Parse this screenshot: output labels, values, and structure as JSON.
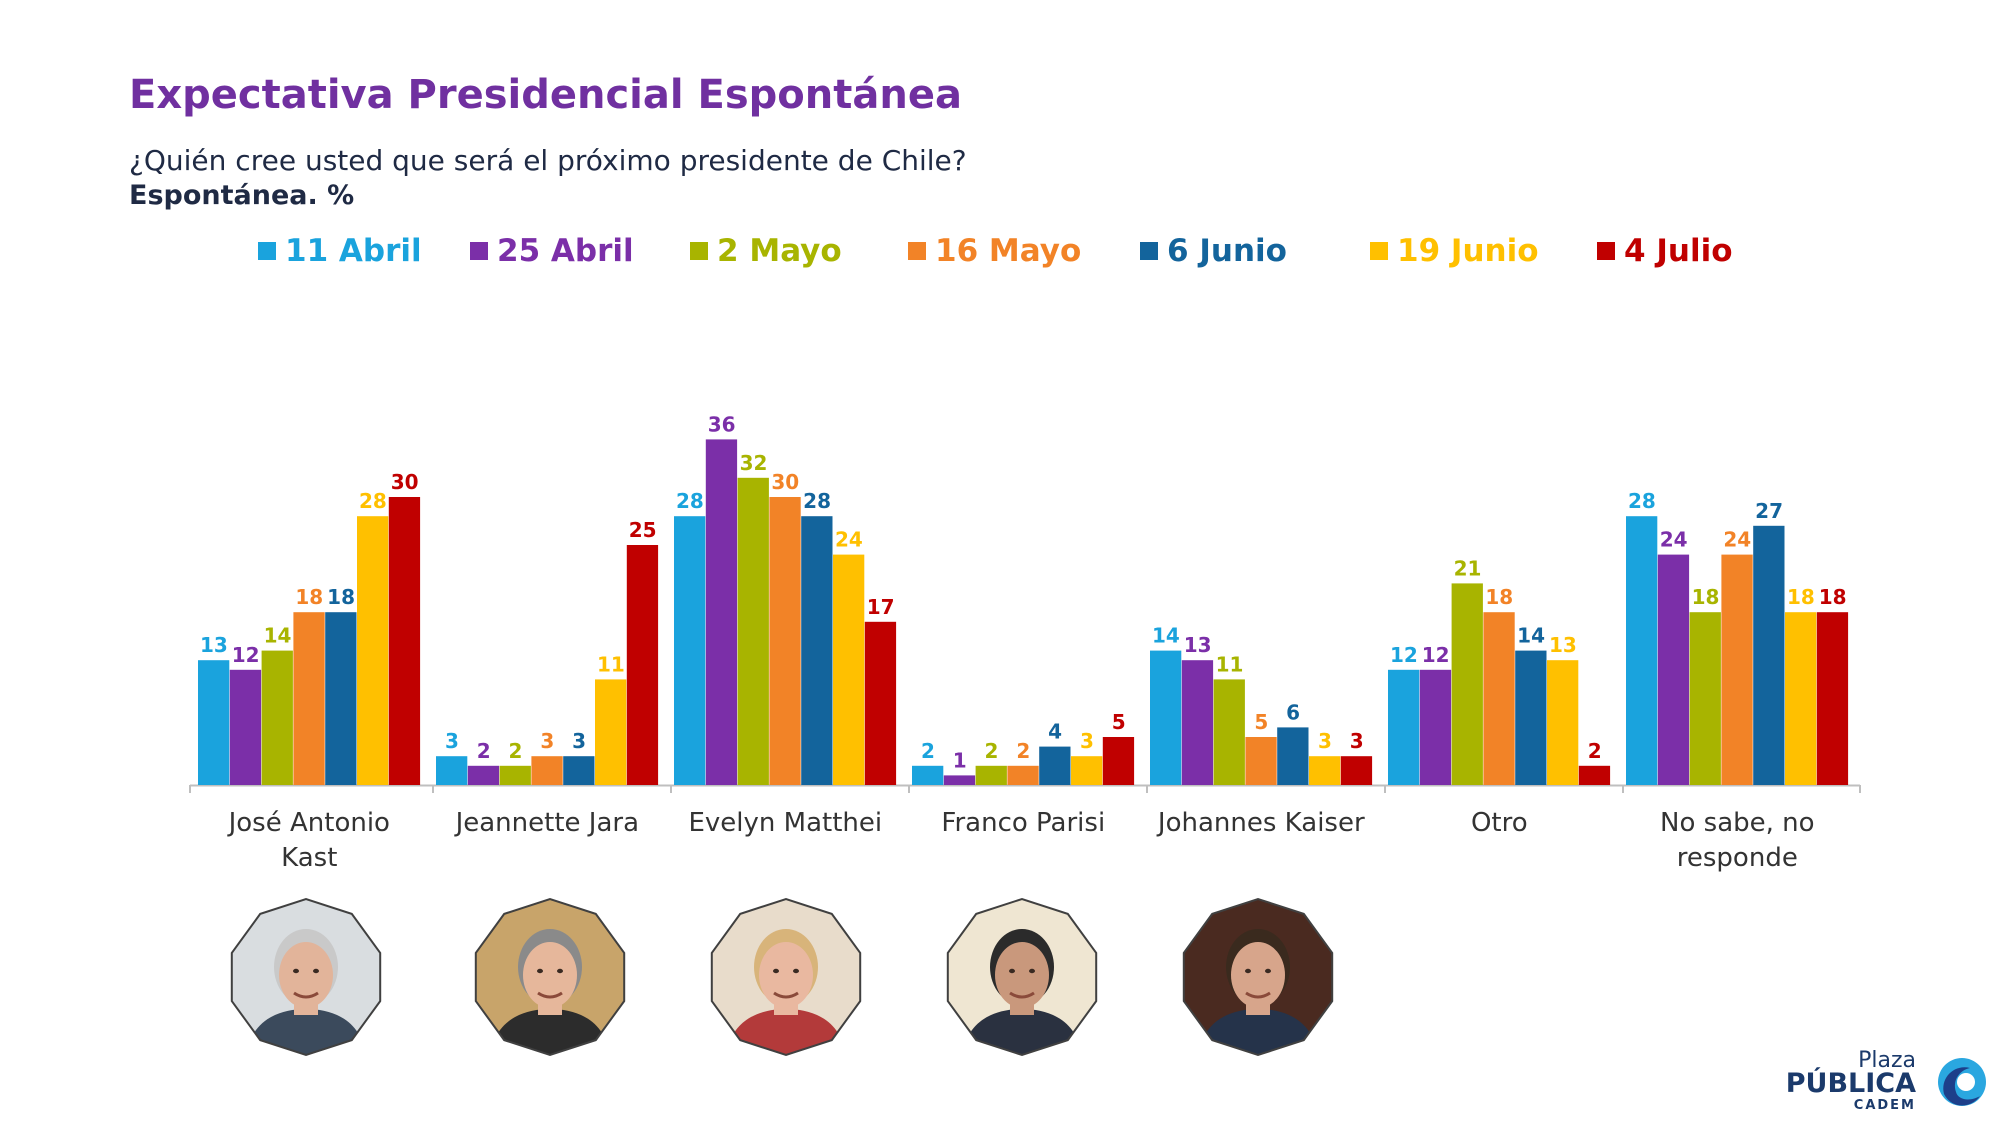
{
  "header": {
    "title": "Expectativa Presidencial Espontánea",
    "subtitle": "¿Quién cree usted que será el próximo presidente de Chile?",
    "subtitle2": "Espontánea. %"
  },
  "chart_data": {
    "type": "bar",
    "title": "Expectativa Presidencial Espontánea",
    "ylim": [
      0,
      40
    ],
    "grid": false,
    "legend_placement": "top",
    "categories": [
      "José Antonio Kast",
      "Jeannette Jara",
      "Evelyn Matthei",
      "Franco Parisi",
      "Johannes Kaiser",
      "Otro",
      "No sabe, no responde"
    ],
    "series": [
      {
        "name": "11 Abril",
        "color": "#1aa3dd",
        "values": [
          13,
          3,
          28,
          2,
          14,
          12,
          28
        ]
      },
      {
        "name": "25 Abril",
        "color": "#7b2fa8",
        "values": [
          12,
          2,
          36,
          1,
          13,
          12,
          24
        ]
      },
      {
        "name": "2 Mayo",
        "color": "#a8b400",
        "values": [
          14,
          2,
          32,
          2,
          11,
          21,
          18
        ]
      },
      {
        "name": "16 Mayo",
        "color": "#f28327",
        "values": [
          18,
          3,
          30,
          2,
          5,
          18,
          24
        ]
      },
      {
        "name": "6 Junio",
        "color": "#13649c",
        "values": [
          18,
          3,
          28,
          4,
          6,
          14,
          27
        ]
      },
      {
        "name": "19 Junio",
        "color": "#ffc000",
        "values": [
          28,
          11,
          24,
          3,
          3,
          13,
          18
        ]
      },
      {
        "name": "4 Julio",
        "color": "#c00000",
        "values": [
          30,
          25,
          17,
          5,
          3,
          2,
          18
        ]
      }
    ],
    "category_labels": [
      [
        "José Antonio",
        "Kast"
      ],
      [
        "Jeannette Jara"
      ],
      [
        "Evelyn Matthei"
      ],
      [
        "Franco Parisi"
      ],
      [
        "Johannes Kaiser"
      ],
      [
        "Otro"
      ],
      [
        "No sabe, no",
        "responde"
      ]
    ]
  },
  "photos": [
    {
      "name": "kast",
      "bg": "#d9dde0",
      "skin": "#e2b49a",
      "hair": "#c9c9c9",
      "cloth": "#3b4a5c"
    },
    {
      "name": "jara",
      "bg": "#c8a46a",
      "skin": "#e6b79b",
      "hair": "#8a8a8a",
      "cloth": "#2c2c2c"
    },
    {
      "name": "matthei",
      "bg": "#e8dccb",
      "skin": "#e9b8a0",
      "hair": "#d8b47a",
      "cloth": "#b33a3a"
    },
    {
      "name": "parisi",
      "bg": "#efe6d2",
      "skin": "#c9987c",
      "hair": "#2b2b2b",
      "cloth": "#2a3140"
    },
    {
      "name": "kaiser",
      "bg": "#4a2a20",
      "skin": "#d7a58b",
      "hair": "#3a2a1e",
      "cloth": "#25334a"
    }
  ],
  "logo": {
    "line1": "Plaza",
    "line2": "PÚBLICA",
    "line3": "CADEM",
    "colors": {
      "navy": "#1b3a6b",
      "light_blue": "#2aa7e0",
      "dark_blue": "#1d3f8a"
    }
  }
}
